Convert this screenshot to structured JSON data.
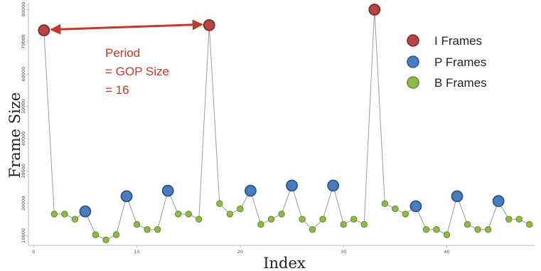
{
  "chart_data": {
    "type": "scatter",
    "xlabel": "Index",
    "ylabel": "Frame Size",
    "xlim": [
      -0.5,
      48.5
    ],
    "ylim": [
      7000,
      82000
    ],
    "x_ticks": [
      0,
      10,
      20,
      30,
      40
    ],
    "y_ticks": [
      10000,
      20000,
      30000,
      40000,
      50000,
      60000,
      70000,
      80000
    ],
    "grid": false,
    "legend_position": "top-right",
    "colors": {
      "I Frames": "#b94444",
      "P Frames": "#4a7cc0",
      "B Frames": "#8dbb45",
      "line": "#9a9a9a",
      "annotation": "#c0392b"
    },
    "frame_types": [
      "I",
      "B",
      "B",
      "B",
      "P",
      "B",
      "B",
      "B",
      "P",
      "B",
      "B",
      "B",
      "P",
      "B",
      "B",
      "B",
      "I",
      "B",
      "B",
      "B",
      "P",
      "B",
      "B",
      "B",
      "P",
      "B",
      "B",
      "B",
      "P",
      "B",
      "B",
      "B",
      "I",
      "B",
      "B",
      "B",
      "P",
      "B",
      "B",
      "B",
      "P",
      "B",
      "B",
      "B",
      "P",
      "B",
      "B",
      "B"
    ],
    "x": [
      1,
      2,
      3,
      4,
      5,
      6,
      7,
      8,
      9,
      10,
      11,
      12,
      13,
      14,
      15,
      16,
      17,
      18,
      19,
      20,
      21,
      22,
      23,
      24,
      25,
      26,
      27,
      28,
      29,
      30,
      31,
      32,
      33,
      34,
      35,
      36,
      37,
      38,
      39,
      40,
      41,
      42,
      43,
      44,
      45,
      46,
      47,
      48
    ],
    "values": [
      73500,
      16700,
      16700,
      15100,
      17500,
      10300,
      8700,
      10300,
      22200,
      13500,
      11900,
      11900,
      23900,
      16700,
      16700,
      15100,
      75100,
      19900,
      16700,
      18300,
      23900,
      13500,
      15100,
      16700,
      25500,
      15100,
      11900,
      15100,
      25500,
      13500,
      15100,
      13500,
      79900,
      19900,
      18300,
      16700,
      19100,
      11900,
      11900,
      10300,
      22200,
      13500,
      11900,
      11900,
      20700,
      15100,
      15100,
      13500
    ],
    "series": [
      {
        "name": "I Frames"
      },
      {
        "name": "P Frames"
      },
      {
        "name": "B Frames"
      }
    ],
    "annotation": {
      "lines": [
        "Period",
        "= GOP Size",
        "= 16"
      ],
      "from_x": 1,
      "to_x": 17
    }
  }
}
